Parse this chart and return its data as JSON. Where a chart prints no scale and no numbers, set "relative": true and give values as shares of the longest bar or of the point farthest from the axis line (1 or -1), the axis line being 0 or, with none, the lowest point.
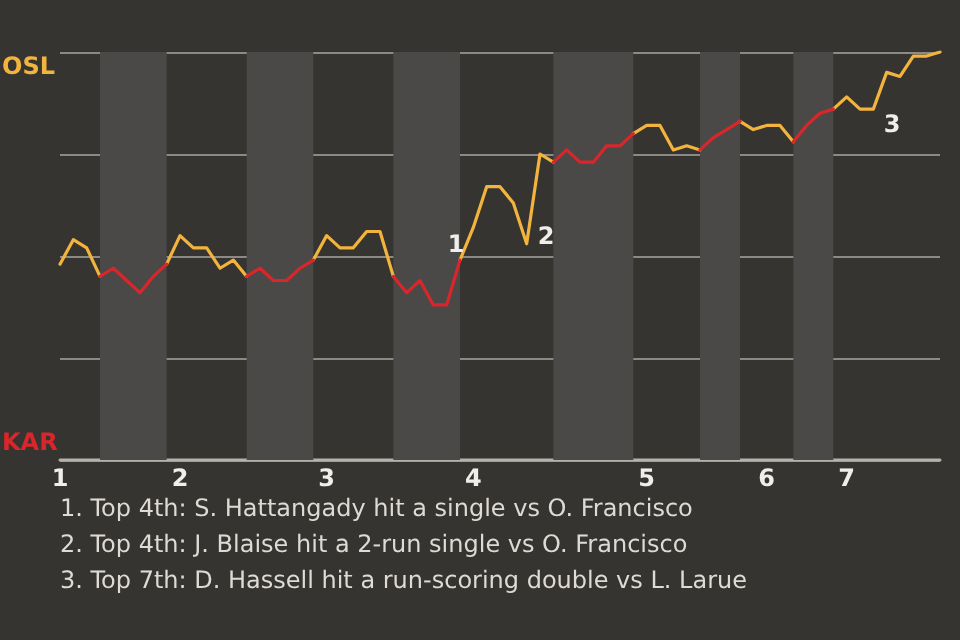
{
  "chart_data": {
    "type": "line",
    "relative": true,
    "categories": [
      "1",
      null,
      null,
      null,
      null,
      null,
      null,
      null,
      null,
      "2",
      null,
      null,
      null,
      null,
      null,
      null,
      null,
      null,
      null,
      null,
      "3",
      null,
      null,
      null,
      null,
      null,
      null,
      null,
      null,
      null,
      null,
      "4",
      null,
      null,
      null,
      null,
      null,
      null,
      null,
      null,
      null,
      null,
      null,
      null,
      "5",
      null,
      null,
      null,
      null,
      null,
      null,
      null,
      null,
      "6",
      null,
      null,
      null,
      null,
      null,
      "7",
      null,
      null,
      null,
      null,
      null,
      null,
      null
    ],
    "series": [
      {
        "color": "#f2b43c",
        "values": [
          0.48,
          0.54,
          0.52,
          0.45,
          null,
          null,
          null,
          null,
          0.48,
          0.55,
          0.52,
          0.52,
          0.47,
          0.49,
          0.45,
          null,
          null,
          null,
          null,
          0.49,
          0.55,
          0.52,
          0.52,
          0.56,
          0.56,
          0.45,
          null,
          null,
          null,
          null,
          0.49,
          0.57,
          0.67,
          0.67,
          0.63,
          0.53,
          0.75,
          0.73,
          null,
          null,
          null,
          null,
          null,
          0.8,
          0.82,
          0.82,
          0.76,
          0.77,
          0.76,
          null,
          null,
          0.83,
          0.81,
          0.82,
          0.82,
          0.78,
          null,
          null,
          0.86,
          0.89,
          0.86,
          0.86,
          0.95,
          0.94,
          0.99,
          0.99,
          1
        ]
      },
      {
        "color": "#d9262b",
        "values": [
          null,
          null,
          null,
          0.45,
          0.47,
          0.44,
          0.41,
          0.45,
          0.48,
          null,
          null,
          null,
          null,
          null,
          0.45,
          0.47,
          0.44,
          0.44,
          0.47,
          0.49,
          null,
          null,
          null,
          null,
          null,
          0.45,
          0.41,
          0.44,
          0.38,
          0.38,
          0.49,
          null,
          null,
          null,
          null,
          null,
          null,
          0.73,
          0.76,
          0.73,
          0.73,
          0.77,
          0.77,
          0.8,
          null,
          null,
          null,
          null,
          0.76,
          0.79,
          0.81,
          0.83,
          null,
          null,
          null,
          0.78,
          0.82,
          0.85,
          0.86,
          null,
          null,
          null,
          null,
          null,
          null,
          null,
          null
        ]
      }
    ],
    "grid": "y",
    "annotations": [
      "1",
      "2",
      "3",
      "OSL",
      "KAR",
      "1. Top 4th: S. Hattangady hit a single vs O. Francisco",
      "2. Top 4th: J. Blaise hit a 2-run single vs O. Francisco",
      "3. Top 7th: D. Hassell hit a run-scoring double vs L. Larue"
    ]
  }
}
